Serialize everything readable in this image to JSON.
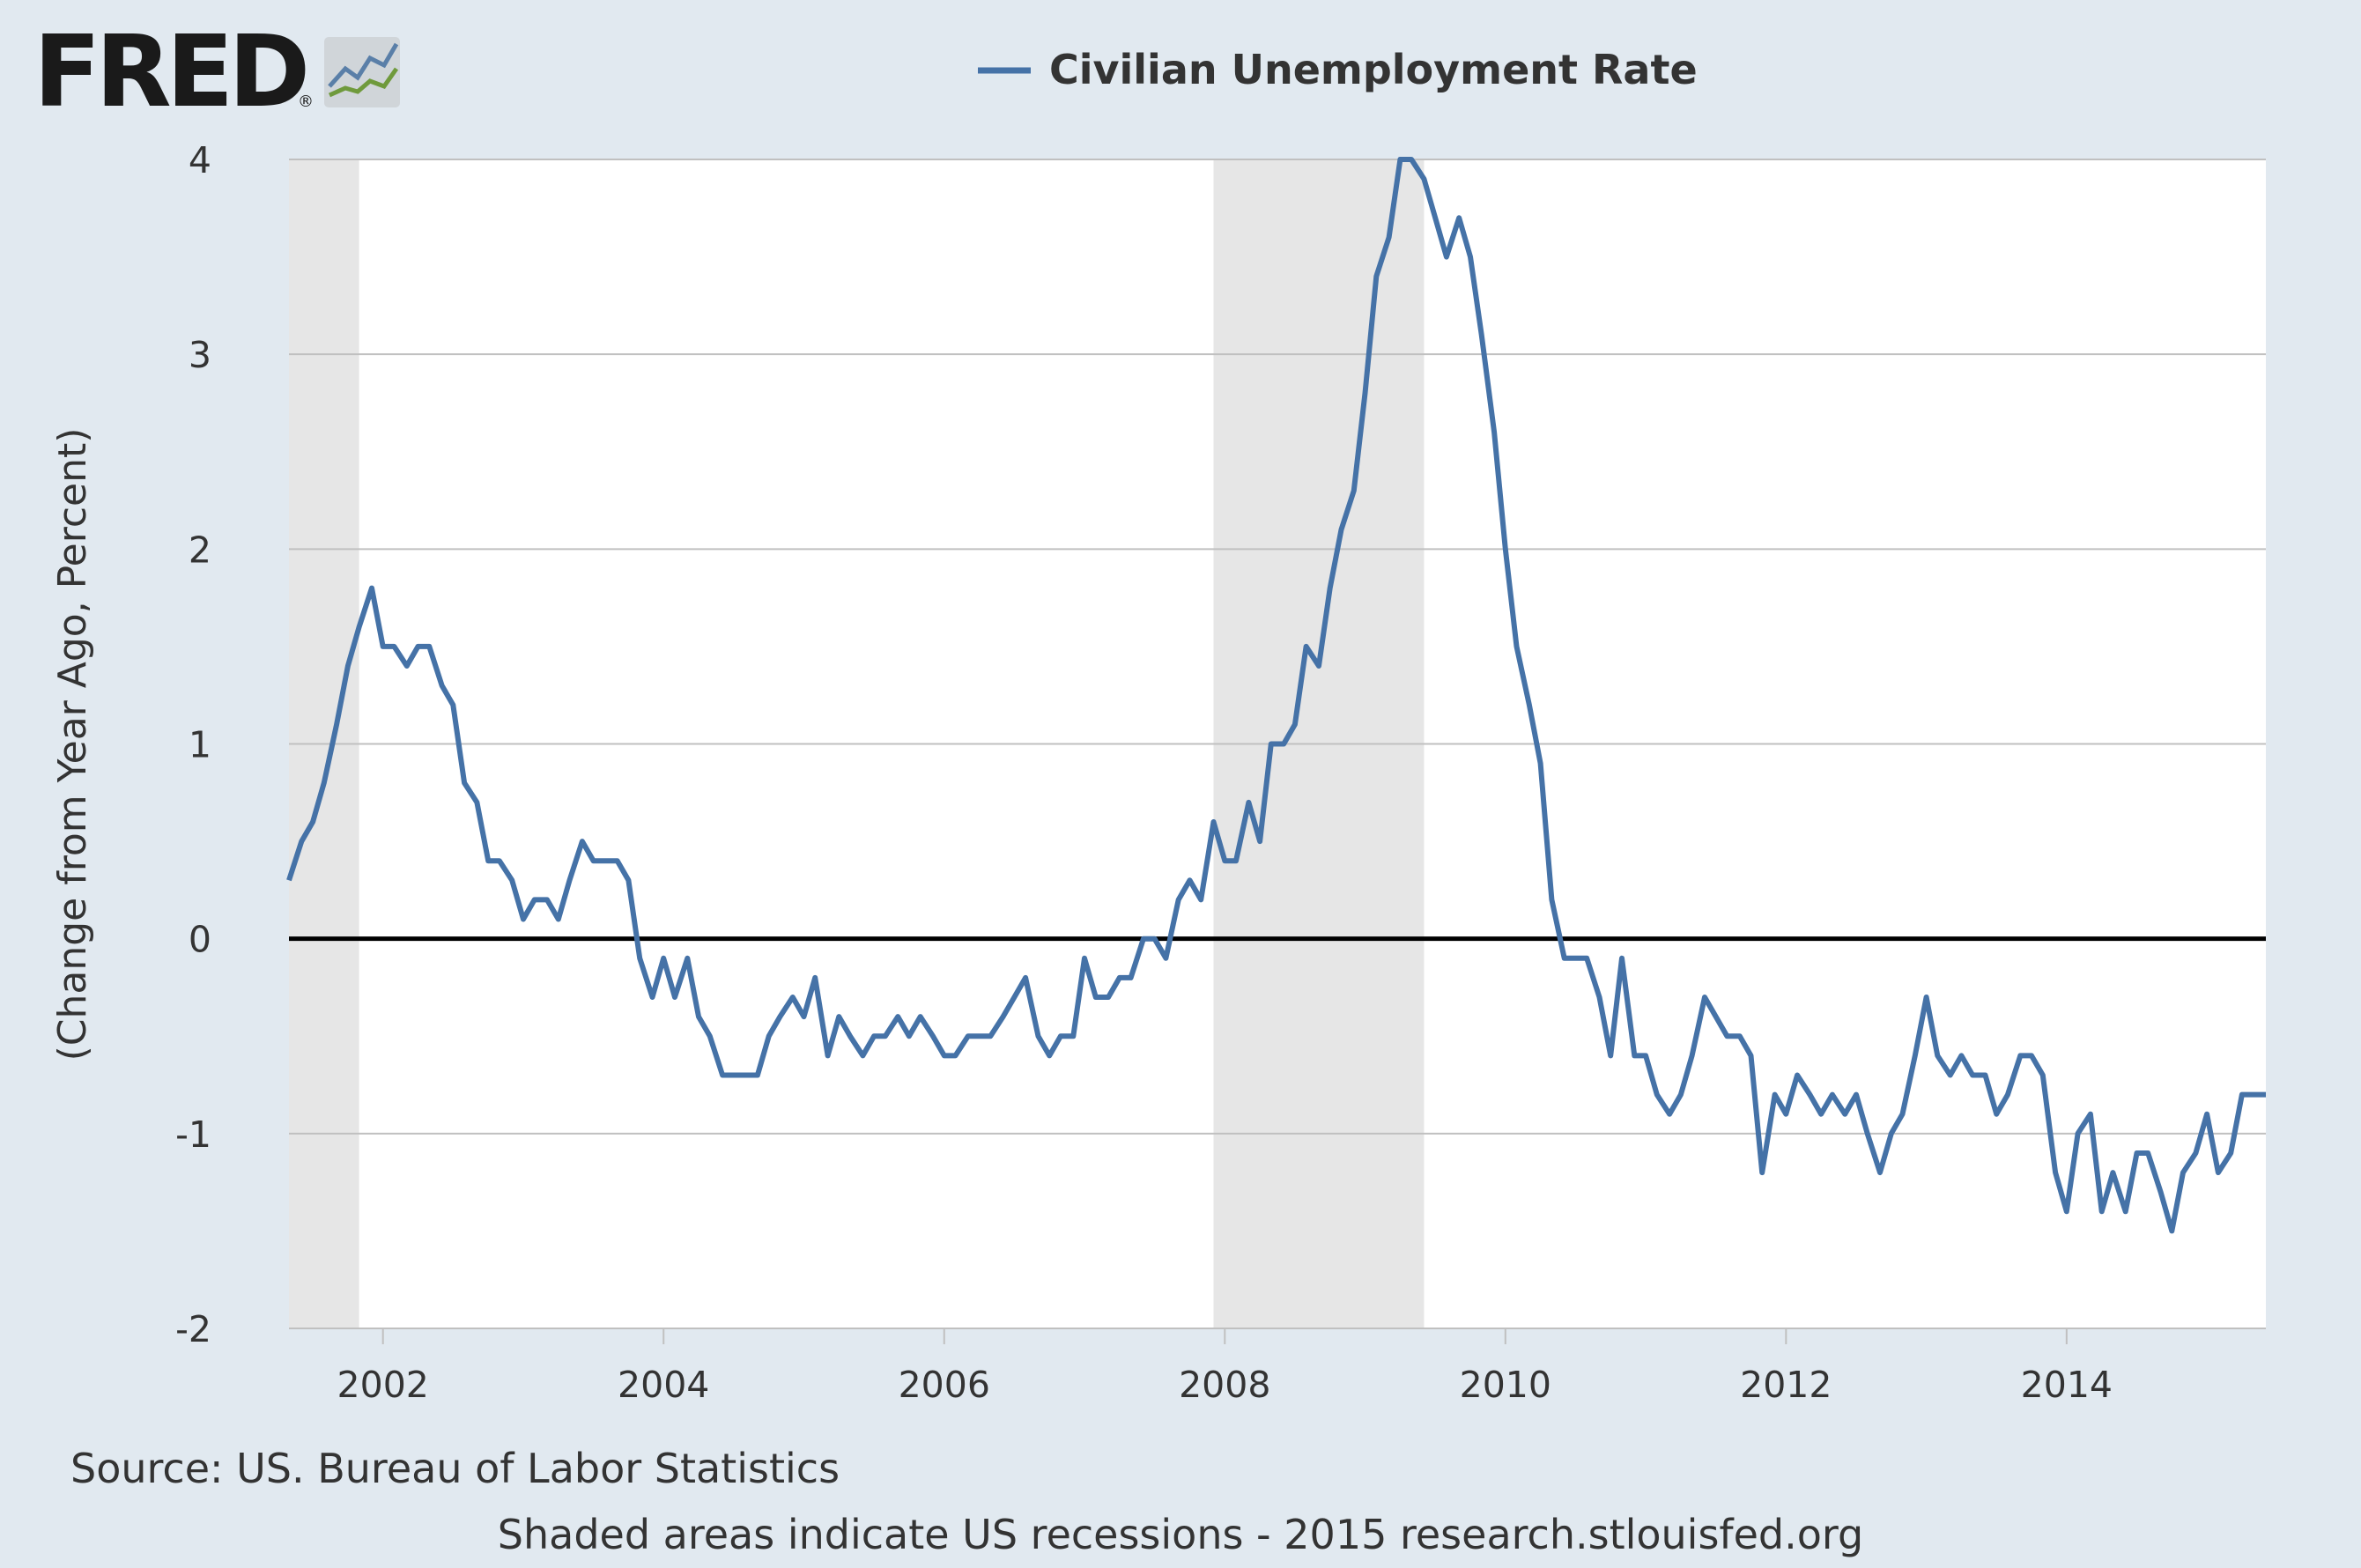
{
  "logo": {
    "text": "FRED",
    "mark": "®"
  },
  "source_text": "Source: US. Bureau of Labor Statistics",
  "footer_text": "Shaded areas indicate US recessions - 2015 research.stlouisfed.org",
  "colors": {
    "background": "#e1e9f0",
    "plot_background": "#ffffff",
    "series": "#4572a7",
    "recession": "#e6e6e6",
    "gridline": "#c0c0c0",
    "zero_line": "#000000"
  },
  "chart_data": {
    "type": "line",
    "title": "",
    "xlabel": "",
    "ylabel": "(Change from Year Ago, Percent)",
    "xlim": [
      2001.33,
      2015.42
    ],
    "ylim": [
      -2,
      4
    ],
    "y_ticks": [
      -2,
      -1,
      0,
      1,
      2,
      3,
      4
    ],
    "y_tick_labels": [
      "-2",
      "-1",
      "0",
      "1",
      "2",
      "3",
      "4"
    ],
    "x_ticks": [
      2002,
      2004,
      2006,
      2008,
      2010,
      2012,
      2014
    ],
    "x_tick_labels": [
      "2002",
      "2004",
      "2006",
      "2008",
      "2010",
      "2012",
      "2014"
    ],
    "grid": true,
    "legend_position": "top-center",
    "recessions": [
      [
        2001.25,
        2001.83
      ],
      [
        2007.92,
        2009.42
      ]
    ],
    "series": [
      {
        "name": "Civilian Unemployment Rate",
        "x": [
          2001.33,
          2001.42,
          2001.5,
          2001.58,
          2001.67,
          2001.75,
          2001.83,
          2001.92,
          2002.0,
          2002.08,
          2002.17,
          2002.25,
          2002.33,
          2002.42,
          2002.5,
          2002.58,
          2002.67,
          2002.75,
          2002.83,
          2002.92,
          2003.0,
          2003.08,
          2003.17,
          2003.25,
          2003.33,
          2003.42,
          2003.5,
          2003.58,
          2003.67,
          2003.75,
          2003.83,
          2003.92,
          2004.0,
          2004.08,
          2004.17,
          2004.25,
          2004.33,
          2004.42,
          2004.5,
          2004.58,
          2004.67,
          2004.75,
          2004.83,
          2004.92,
          2005.0,
          2005.08,
          2005.17,
          2005.25,
          2005.33,
          2005.42,
          2005.5,
          2005.58,
          2005.67,
          2005.75,
          2005.83,
          2005.92,
          2006.0,
          2006.08,
          2006.17,
          2006.25,
          2006.33,
          2006.42,
          2006.5,
          2006.58,
          2006.67,
          2006.75,
          2006.83,
          2006.92,
          2007.0,
          2007.08,
          2007.17,
          2007.25,
          2007.33,
          2007.42,
          2007.5,
          2007.58,
          2007.67,
          2007.75,
          2007.83,
          2007.92,
          2008.0,
          2008.08,
          2008.17,
          2008.25,
          2008.33,
          2008.42,
          2008.5,
          2008.58,
          2008.67,
          2008.75,
          2008.83,
          2008.92,
          2009.0,
          2009.08,
          2009.17,
          2009.25,
          2009.33,
          2009.42,
          2009.5,
          2009.58,
          2009.67,
          2009.75,
          2009.83,
          2009.92,
          2010.0,
          2010.08,
          2010.17,
          2010.25,
          2010.33,
          2010.42,
          2010.5,
          2010.58,
          2010.67,
          2010.75,
          2010.83,
          2010.92,
          2011.0,
          2011.08,
          2011.17,
          2011.25,
          2011.33,
          2011.42,
          2011.5,
          2011.58,
          2011.67,
          2011.75,
          2011.83,
          2011.92,
          2012.0,
          2012.08,
          2012.17,
          2012.25,
          2012.33,
          2012.42,
          2012.5,
          2012.58,
          2012.67,
          2012.75,
          2012.83,
          2012.92,
          2013.0,
          2013.08,
          2013.17,
          2013.25,
          2013.33,
          2013.42,
          2013.5,
          2013.58,
          2013.67,
          2013.75,
          2013.83,
          2013.92,
          2014.0,
          2014.08,
          2014.17,
          2014.25,
          2014.33,
          2014.42,
          2014.5,
          2014.58,
          2014.67,
          2014.75,
          2014.83,
          2014.92,
          2015.0,
          2015.08,
          2015.17,
          2015.25,
          2015.33,
          2015.42
        ],
        "values": [
          0.3,
          0.5,
          0.6,
          0.8,
          1.1,
          1.4,
          1.6,
          1.8,
          1.5,
          1.5,
          1.4,
          1.5,
          1.5,
          1.3,
          1.2,
          0.8,
          0.7,
          0.4,
          0.4,
          0.3,
          0.1,
          0.2,
          0.2,
          0.1,
          0.3,
          0.5,
          0.4,
          0.4,
          0.4,
          0.3,
          -0.1,
          -0.3,
          -0.1,
          -0.3,
          -0.1,
          -0.4,
          -0.5,
          -0.7,
          -0.7,
          -0.7,
          -0.7,
          -0.5,
          -0.4,
          -0.3,
          -0.4,
          -0.2,
          -0.6,
          -0.4,
          -0.5,
          -0.6,
          -0.5,
          -0.5,
          -0.4,
          -0.5,
          -0.4,
          -0.5,
          -0.6,
          -0.6,
          -0.5,
          -0.5,
          -0.5,
          -0.4,
          -0.3,
          -0.2,
          -0.5,
          -0.6,
          -0.5,
          -0.5,
          -0.1,
          -0.3,
          -0.3,
          -0.2,
          -0.2,
          0.0,
          0.0,
          -0.1,
          0.2,
          0.3,
          0.2,
          0.6,
          0.4,
          0.4,
          0.7,
          0.5,
          1.0,
          1.0,
          1.1,
          1.5,
          1.4,
          1.8,
          2.1,
          2.3,
          2.8,
          3.4,
          3.6,
          4.0,
          4.0,
          3.9,
          3.7,
          3.5,
          3.7,
          3.5,
          3.1,
          2.6,
          2.0,
          1.5,
          1.2,
          0.9,
          0.2,
          -0.1,
          -0.1,
          -0.1,
          -0.3,
          -0.6,
          -0.1,
          -0.6,
          -0.6,
          -0.8,
          -0.9,
          -0.8,
          -0.6,
          -0.3,
          -0.4,
          -0.5,
          -0.5,
          -0.6,
          -1.2,
          -0.8,
          -0.9,
          -0.7,
          -0.8,
          -0.9,
          -0.8,
          -0.9,
          -0.8,
          -1.0,
          -1.2,
          -1.0,
          -0.9,
          -0.6,
          -0.3,
          -0.6,
          -0.7,
          -0.6,
          -0.7,
          -0.7,
          -0.9,
          -0.8,
          -0.6,
          -0.6,
          -0.7,
          -1.2,
          -1.4,
          -1.0,
          -0.9,
          -1.4,
          -1.2,
          -1.4,
          -1.1,
          -1.1,
          -1.3,
          -1.5,
          -1.2,
          -1.1,
          -0.9,
          -1.2,
          -1.1,
          -0.8,
          -0.8,
          -0.8
        ]
      }
    ]
  }
}
